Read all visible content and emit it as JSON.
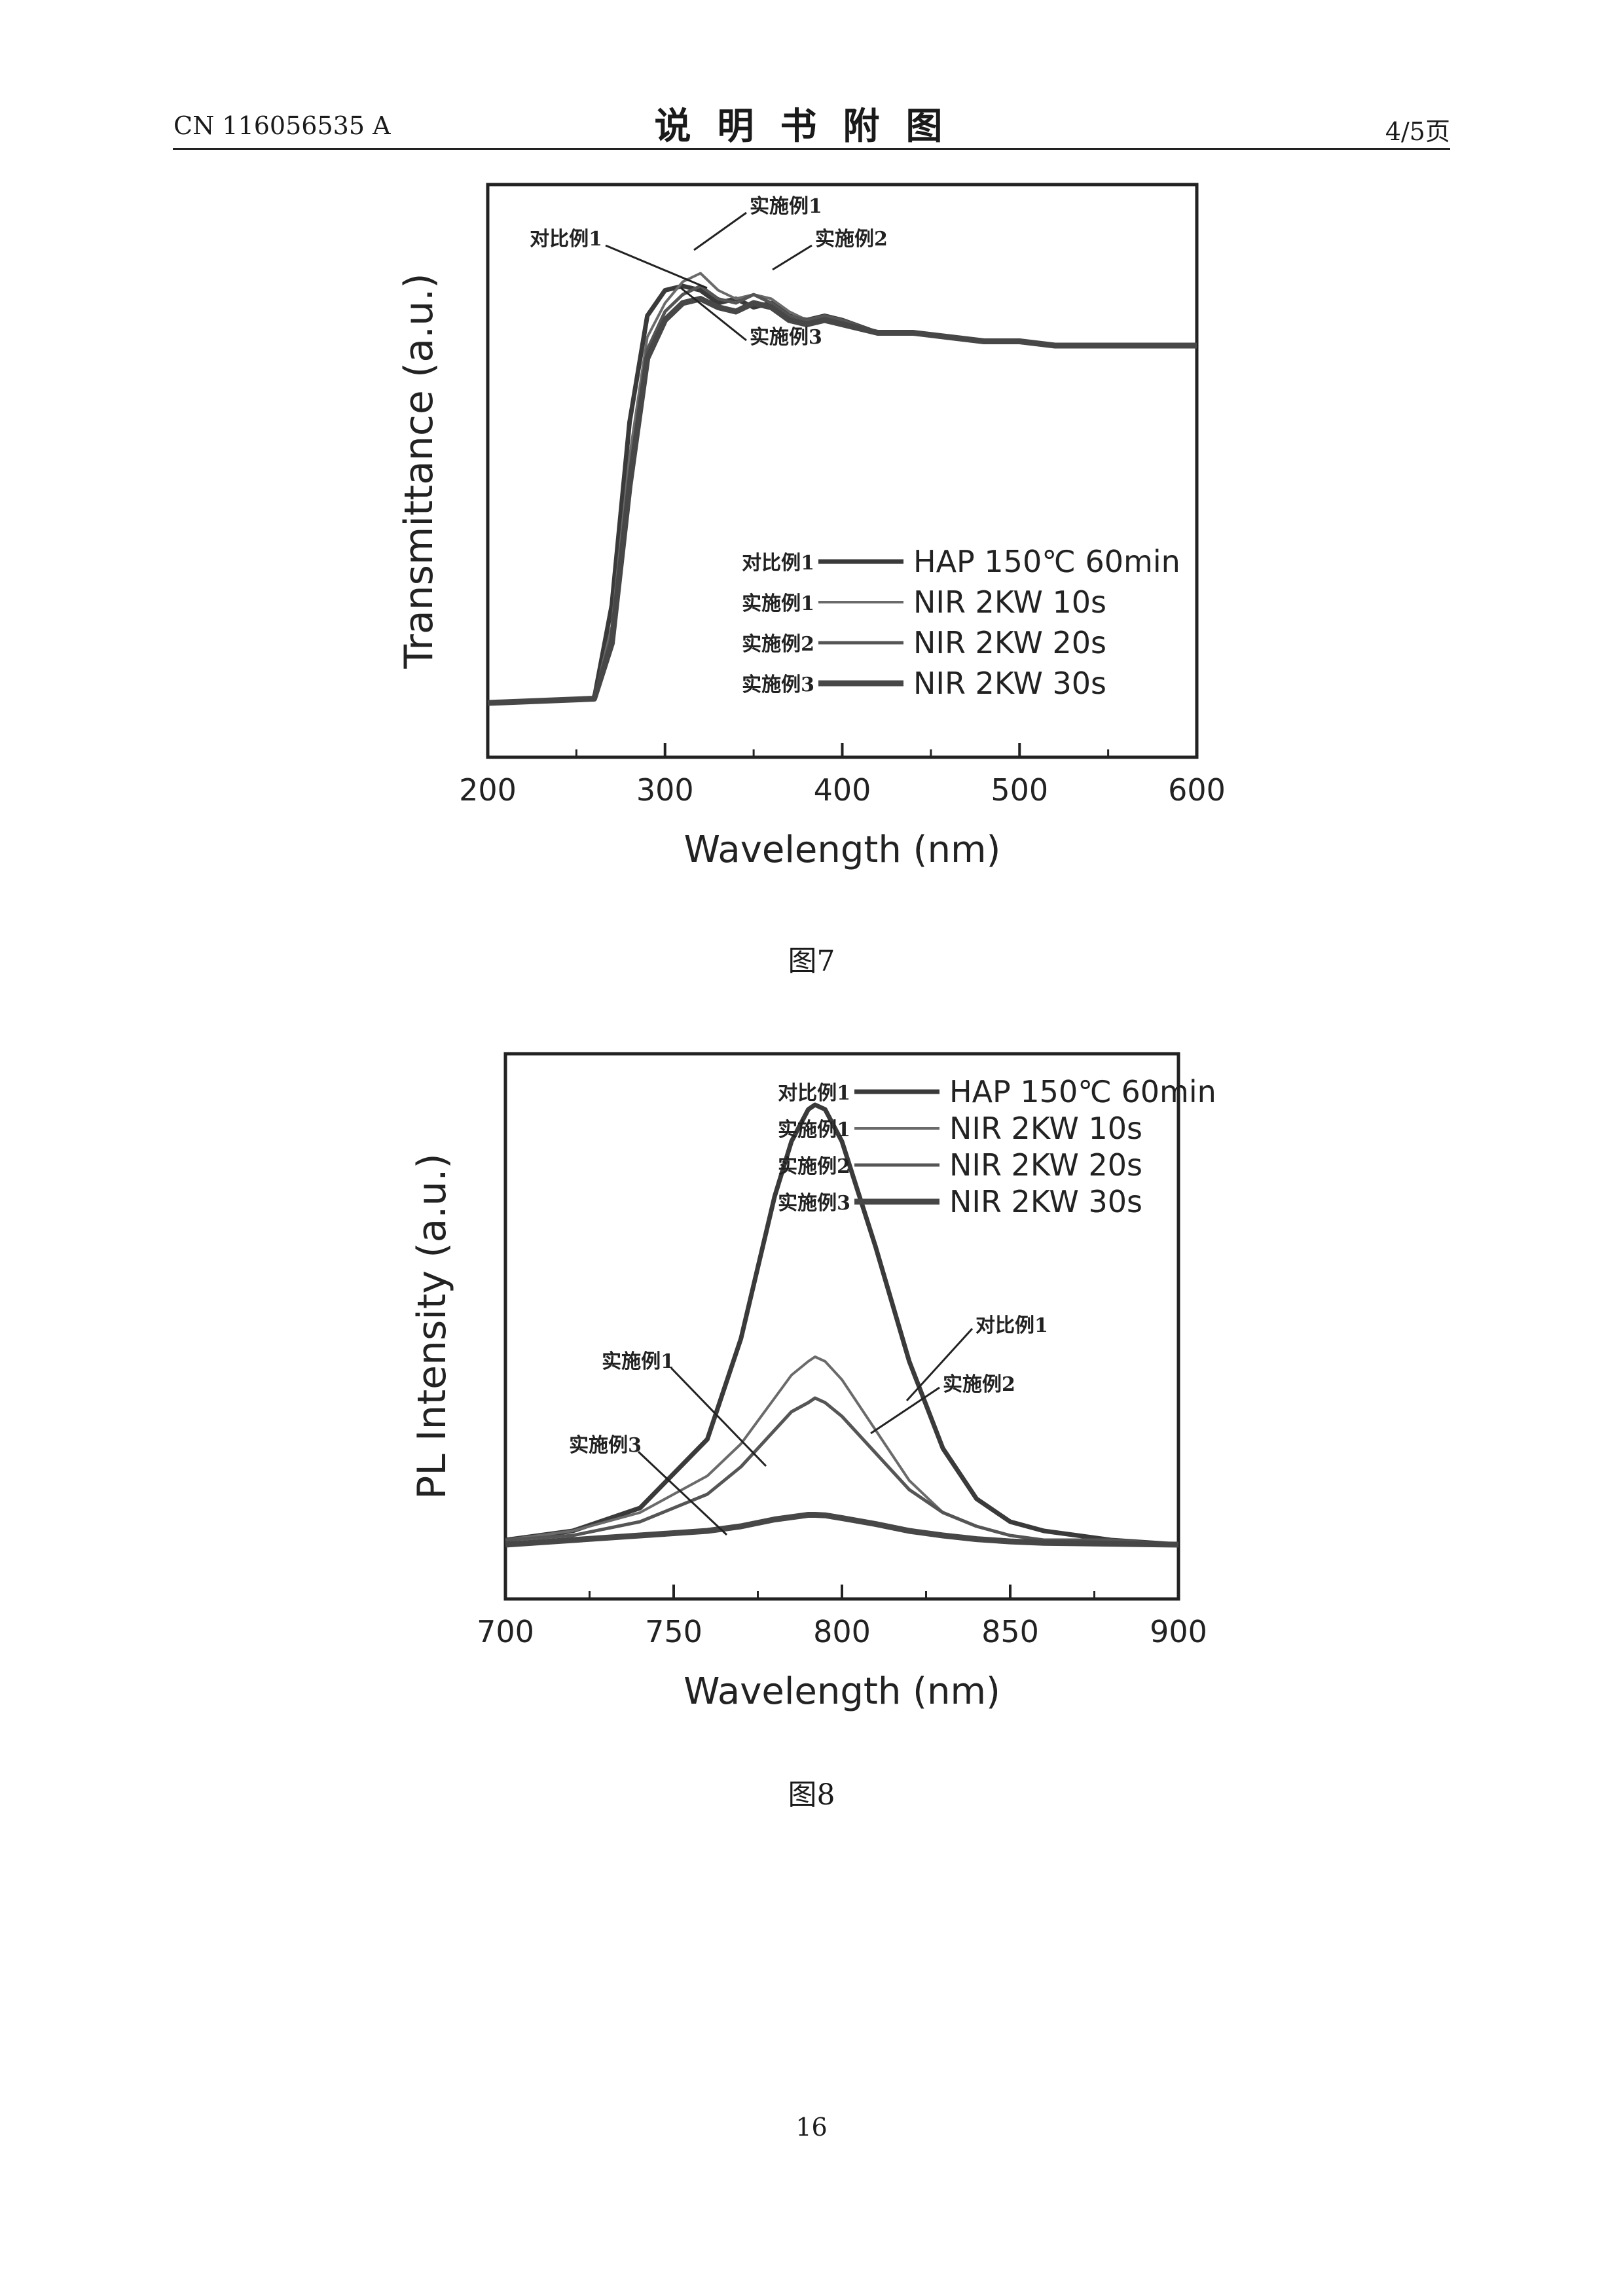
{
  "header": {
    "doc_number": "CN 116056535 A",
    "section_title": "说明书附图",
    "page_ratio": "4/5页"
  },
  "figures": [
    {
      "caption": "图7"
    },
    {
      "caption": "图8"
    }
  ],
  "footer": {
    "page_number": "16"
  },
  "chart_data": [
    {
      "type": "line",
      "xlabel": "Wavelength (nm)",
      "ylabel": "Transmittance (a.u.)",
      "xlim": [
        200,
        600
      ],
      "ylim": [
        0,
        1
      ],
      "xticks": [
        "200",
        "300",
        "400",
        "500",
        "600"
      ],
      "legend_placement": "lower-right",
      "series": [
        {
          "name": "对比例1",
          "legend_label": "HAP 150℃ 60min",
          "x": [
            200,
            260,
            270,
            280,
            290,
            300,
            310,
            320,
            330,
            340,
            350,
            360,
            370,
            380,
            390,
            400,
            420,
            440,
            460,
            480,
            500,
            520,
            540,
            560,
            580,
            600
          ],
          "y": [
            0.02,
            0.03,
            0.25,
            0.68,
            0.93,
            0.99,
            1.0,
            0.99,
            0.96,
            0.97,
            0.95,
            0.96,
            0.93,
            0.92,
            0.93,
            0.92,
            0.89,
            0.89,
            0.88,
            0.87,
            0.87,
            0.86,
            0.86,
            0.86,
            0.86,
            0.86
          ]
        },
        {
          "name": "实施例1",
          "legend_label": "NIR 2KW 10s",
          "x": [
            200,
            260,
            270,
            280,
            290,
            300,
            310,
            320,
            330,
            340,
            350,
            360,
            370,
            380,
            390,
            400,
            420,
            440,
            460,
            480,
            500,
            520,
            540,
            560,
            580,
            600
          ],
          "y": [
            0.02,
            0.03,
            0.2,
            0.6,
            0.88,
            0.96,
            1.01,
            1.03,
            0.99,
            0.97,
            0.98,
            0.97,
            0.94,
            0.92,
            0.93,
            0.92,
            0.89,
            0.89,
            0.88,
            0.87,
            0.87,
            0.86,
            0.86,
            0.86,
            0.86,
            0.86
          ]
        },
        {
          "name": "实施例2",
          "legend_label": "NIR 2KW 20s",
          "x": [
            200,
            260,
            270,
            280,
            290,
            300,
            310,
            320,
            330,
            340,
            350,
            360,
            370,
            380,
            390,
            400,
            420,
            440,
            460,
            480,
            500,
            520,
            540,
            560,
            580,
            600
          ],
          "y": [
            0.02,
            0.03,
            0.18,
            0.56,
            0.85,
            0.94,
            0.98,
            1.0,
            0.97,
            0.96,
            0.98,
            0.96,
            0.93,
            0.92,
            0.93,
            0.92,
            0.89,
            0.89,
            0.88,
            0.87,
            0.87,
            0.86,
            0.86,
            0.86,
            0.86,
            0.86
          ]
        },
        {
          "name": "实施例3",
          "legend_label": "NIR 2KW 30s",
          "x": [
            200,
            260,
            270,
            280,
            290,
            300,
            310,
            320,
            330,
            340,
            350,
            360,
            370,
            380,
            390,
            400,
            420,
            440,
            460,
            480,
            500,
            520,
            540,
            560,
            580,
            600
          ],
          "y": [
            0.02,
            0.03,
            0.16,
            0.53,
            0.83,
            0.92,
            0.96,
            0.97,
            0.95,
            0.94,
            0.96,
            0.95,
            0.92,
            0.91,
            0.92,
            0.91,
            0.89,
            0.89,
            0.88,
            0.87,
            0.87,
            0.86,
            0.86,
            0.86,
            0.86,
            0.86
          ]
        }
      ],
      "annotations": [
        "对比例1",
        "实施例1",
        "实施例2",
        "实施例3"
      ]
    },
    {
      "type": "line",
      "xlabel": "Wavelength (nm)",
      "ylabel": "PL Intensity (a.u.)",
      "xlim": [
        700,
        900
      ],
      "ylim": [
        0,
        1
      ],
      "xticks": [
        "700",
        "750",
        "800",
        "850",
        "900"
      ],
      "legend_placement": "top-right",
      "series": [
        {
          "name": "对比例1",
          "legend_label": "HAP 150℃ 60min",
          "x": [
            700,
            720,
            740,
            760,
            770,
            780,
            785,
            790,
            792,
            795,
            800,
            810,
            820,
            830,
            840,
            850,
            860,
            880,
            900
          ],
          "y": [
            0.01,
            0.03,
            0.08,
            0.23,
            0.45,
            0.76,
            0.88,
            0.95,
            0.96,
            0.95,
            0.88,
            0.65,
            0.4,
            0.21,
            0.1,
            0.05,
            0.03,
            0.01,
            0.0
          ]
        },
        {
          "name": "实施例1",
          "legend_label": "NIR 2KW 10s",
          "x": [
            700,
            720,
            740,
            760,
            770,
            780,
            785,
            790,
            792,
            795,
            800,
            810,
            820,
            830,
            840,
            850,
            860,
            880,
            900
          ],
          "y": [
            0.01,
            0.03,
            0.07,
            0.15,
            0.22,
            0.32,
            0.37,
            0.4,
            0.41,
            0.4,
            0.36,
            0.25,
            0.14,
            0.07,
            0.04,
            0.02,
            0.01,
            0.01,
            0.0
          ]
        },
        {
          "name": "实施例2",
          "legend_label": "NIR 2KW 20s",
          "x": [
            700,
            720,
            740,
            760,
            770,
            780,
            785,
            790,
            792,
            795,
            800,
            810,
            820,
            830,
            840,
            850,
            860,
            880,
            900
          ],
          "y": [
            0.01,
            0.02,
            0.05,
            0.11,
            0.17,
            0.25,
            0.29,
            0.31,
            0.32,
            0.31,
            0.28,
            0.2,
            0.12,
            0.07,
            0.04,
            0.02,
            0.01,
            0.01,
            0.0
          ]
        },
        {
          "name": "实施例3",
          "legend_label": "NIR 2KW 30s",
          "x": [
            700,
            720,
            740,
            760,
            770,
            780,
            785,
            790,
            792,
            795,
            800,
            810,
            820,
            830,
            840,
            850,
            860,
            880,
            900
          ],
          "y": [
            0.0,
            0.01,
            0.02,
            0.03,
            0.04,
            0.055,
            0.06,
            0.065,
            0.065,
            0.064,
            0.058,
            0.045,
            0.03,
            0.02,
            0.012,
            0.007,
            0.004,
            0.002,
            0.0
          ]
        }
      ],
      "annotations": [
        "对比例1",
        "实施例1",
        "实施例2",
        "实施例3"
      ]
    }
  ]
}
